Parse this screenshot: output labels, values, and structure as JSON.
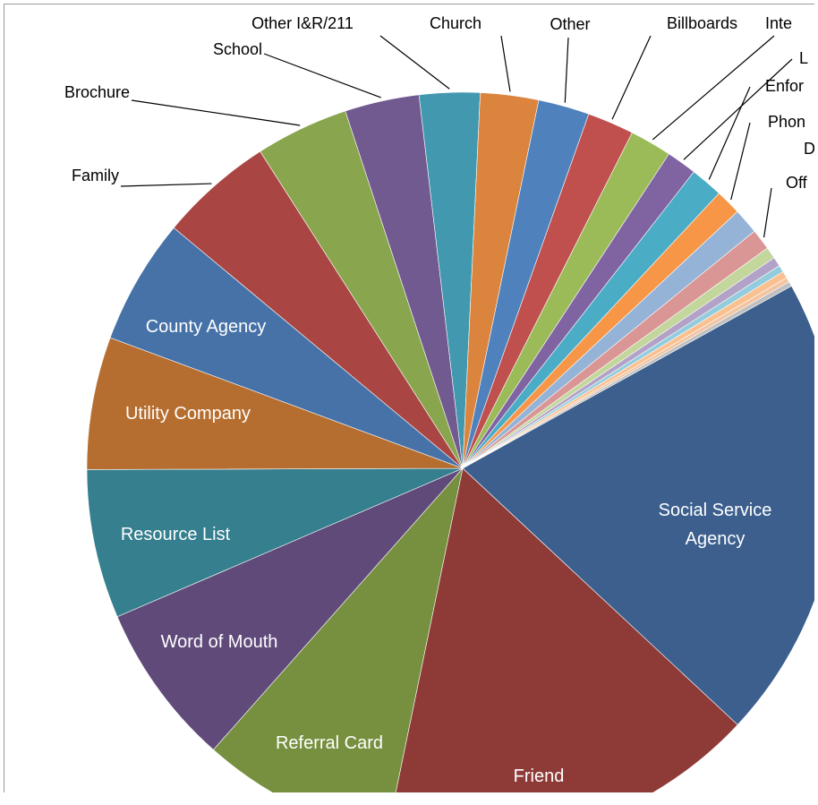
{
  "chart_data": {
    "type": "pie",
    "categories": [
      "Social Service Agency",
      "Friend",
      "Referral Card",
      "Word of Mouth",
      "Resource List",
      "Utility Company",
      "County Agency",
      "Family",
      "Brochure",
      "School",
      "Other I&R/211",
      "Church",
      "Other",
      "Billboards",
      "Inte",
      "L",
      "Enfor",
      "Phon",
      "D",
      "Off",
      null,
      null,
      null,
      null,
      null,
      null
    ],
    "values": [
      20,
      16.3,
      8.3,
      7,
      6.4,
      5.7,
      5.4,
      4.9,
      4,
      3.2,
      2.6,
      2.5,
      2.2,
      2,
      1.8,
      1.3,
      1.4,
      1.1,
      1.1,
      0.9,
      0.5,
      0.4,
      0.3,
      0.3,
      0.2,
      0.2
    ],
    "colors": [
      "#3c5f8e",
      "#8e3b38",
      "#77903f",
      "#5f4a7a",
      "#357f8e",
      "#b66e30",
      "#4672a8",
      "#a94542",
      "#89a54e",
      "#715a8f",
      "#4298ae",
      "#db843d",
      "#4f81bd",
      "#c0504d",
      "#9bbb59",
      "#8064a2",
      "#4bacc6",
      "#f79646",
      "#95b3d7",
      "#d99694",
      "#c3d69b",
      "#b3a2c7",
      "#93cddd",
      "#fac090",
      "#f2c4a0",
      "#c0c0c0"
    ],
    "startangle": 61
  }
}
